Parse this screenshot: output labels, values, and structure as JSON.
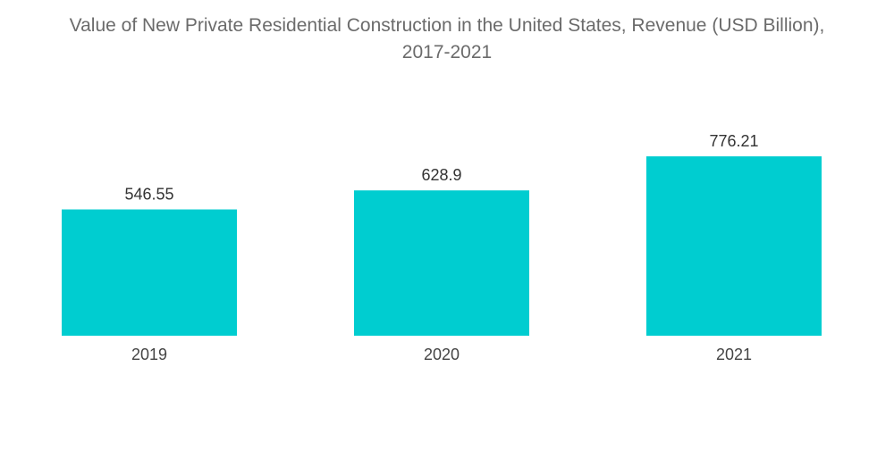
{
  "chart_data": {
    "type": "bar",
    "title_line1": "Value of New Private Residential Construction in the United States, Revenue (USD Billion),",
    "title_line2": "2017-2021",
    "categories": [
      "2019",
      "2020",
      "2021"
    ],
    "values": [
      546.55,
      628.9,
      776.21
    ],
    "value_labels": [
      "546.55",
      "628.9",
      "776.21"
    ],
    "xlabel": "",
    "ylabel": "",
    "grid": false,
    "legend": "none",
    "bar_color": "#00cdd0"
  }
}
